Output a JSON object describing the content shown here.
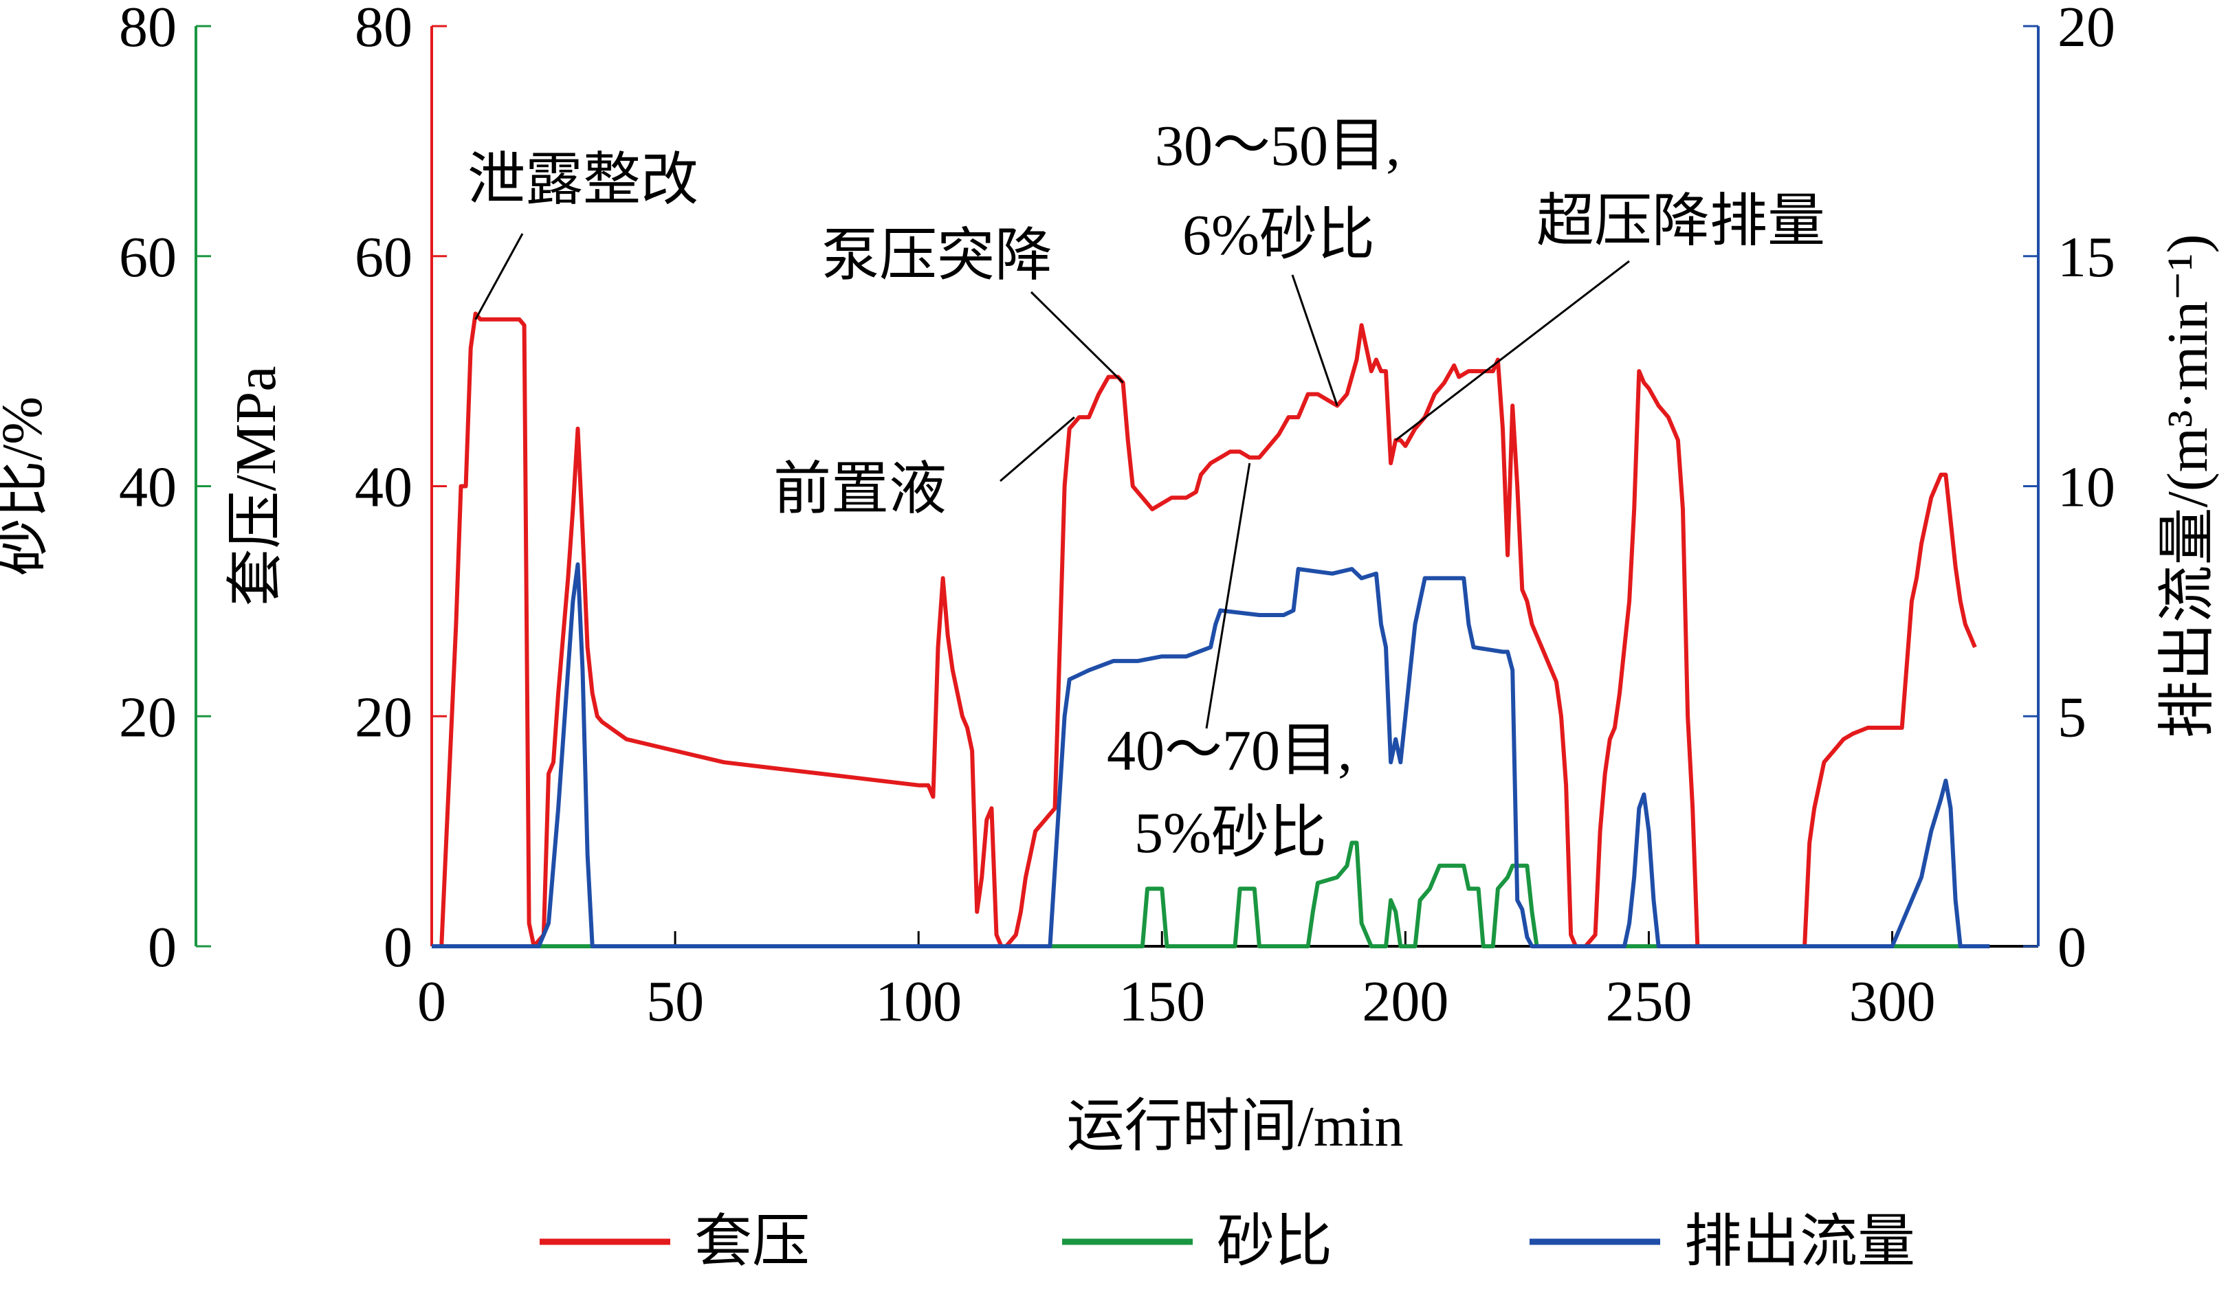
{
  "chart_data": {
    "type": "line",
    "xlabel": "运行时间/min",
    "xlim": [
      0,
      330
    ],
    "xticks": [
      0,
      50,
      100,
      150,
      200,
      250,
      300
    ],
    "axes": {
      "sand": {
        "label": "砂比/%",
        "lim": [
          0,
          80
        ],
        "ticks": [
          0,
          20,
          40,
          60,
          80
        ],
        "color": "#1a9641"
      },
      "pressure": {
        "label": "套压/MPa",
        "lim": [
          0,
          80
        ],
        "ticks": [
          0,
          20,
          40,
          60,
          80
        ],
        "color": "#e31a1c"
      },
      "flow": {
        "label": "排出流量/(m³·min⁻¹)",
        "lim": [
          0,
          20
        ],
        "ticks": [
          0,
          5,
          10,
          15,
          20
        ],
        "color": "#1f4ea8"
      }
    },
    "series": [
      {
        "name": "套压",
        "axis": "pressure",
        "color": "#e31a1c",
        "points": [
          [
            2,
            0
          ],
          [
            5,
            28
          ],
          [
            6,
            40
          ],
          [
            7,
            40
          ],
          [
            8,
            52
          ],
          [
            9,
            55
          ],
          [
            10,
            54.5
          ],
          [
            18,
            54.5
          ],
          [
            19,
            54
          ],
          [
            20,
            2
          ],
          [
            21,
            0
          ],
          [
            23,
            1
          ],
          [
            24,
            15
          ],
          [
            25,
            16
          ],
          [
            26,
            22
          ],
          [
            27,
            27
          ],
          [
            28,
            32
          ],
          [
            29,
            38
          ],
          [
            30,
            45
          ],
          [
            31,
            36
          ],
          [
            32,
            26
          ],
          [
            33,
            22
          ],
          [
            34,
            20
          ],
          [
            35,
            19.5
          ],
          [
            40,
            18
          ],
          [
            50,
            17
          ],
          [
            60,
            16
          ],
          [
            70,
            15.5
          ],
          [
            80,
            15
          ],
          [
            90,
            14.5
          ],
          [
            100,
            14
          ],
          [
            102,
            14
          ],
          [
            103,
            13
          ],
          [
            104,
            26
          ],
          [
            105,
            32
          ],
          [
            106,
            27
          ],
          [
            107,
            24
          ],
          [
            108,
            22
          ],
          [
            109,
            20
          ],
          [
            110,
            19
          ],
          [
            111,
            17
          ],
          [
            112,
            3
          ],
          [
            113,
            6
          ],
          [
            114,
            11
          ],
          [
            115,
            12
          ],
          [
            116,
            1
          ],
          [
            117,
            0
          ],
          [
            118,
            0
          ],
          [
            120,
            1
          ],
          [
            121,
            3
          ],
          [
            122,
            6
          ],
          [
            123,
            8
          ],
          [
            124,
            10
          ],
          [
            126,
            11
          ],
          [
            128,
            12
          ],
          [
            129,
            26
          ],
          [
            130,
            40
          ],
          [
            131,
            45
          ],
          [
            133,
            46
          ],
          [
            135,
            46
          ],
          [
            137,
            48
          ],
          [
            139,
            49.5
          ],
          [
            141,
            49.5
          ],
          [
            142,
            49
          ],
          [
            143,
            44
          ],
          [
            144,
            40
          ],
          [
            146,
            39
          ],
          [
            148,
            38
          ],
          [
            150,
            38.5
          ],
          [
            152,
            39
          ],
          [
            155,
            39
          ],
          [
            157,
            39.5
          ],
          [
            158,
            41
          ],
          [
            160,
            42
          ],
          [
            162,
            42.5
          ],
          [
            164,
            43
          ],
          [
            166,
            43
          ],
          [
            168,
            42.5
          ],
          [
            170,
            42.5
          ],
          [
            172,
            43.5
          ],
          [
            174,
            44.5
          ],
          [
            176,
            46
          ],
          [
            178,
            46
          ],
          [
            180,
            48
          ],
          [
            182,
            48
          ],
          [
            184,
            47.5
          ],
          [
            186,
            47
          ],
          [
            188,
            48
          ],
          [
            190,
            51
          ],
          [
            191,
            54
          ],
          [
            192,
            52
          ],
          [
            193,
            50
          ],
          [
            194,
            51
          ],
          [
            195,
            50
          ],
          [
            196,
            50
          ],
          [
            197,
            42
          ],
          [
            198,
            44
          ],
          [
            199,
            44
          ],
          [
            200,
            43.5
          ],
          [
            202,
            45
          ],
          [
            204,
            46
          ],
          [
            206,
            48
          ],
          [
            208,
            49
          ],
          [
            210,
            50.5
          ],
          [
            211,
            49.5
          ],
          [
            213,
            50
          ],
          [
            215,
            50
          ],
          [
            218,
            50
          ],
          [
            219,
            51
          ],
          [
            220,
            45
          ],
          [
            221,
            34
          ],
          [
            222,
            47
          ],
          [
            223,
            40
          ],
          [
            224,
            31
          ],
          [
            225,
            30
          ],
          [
            226,
            28
          ],
          [
            228,
            26
          ],
          [
            230,
            24
          ],
          [
            231,
            23
          ],
          [
            232,
            20
          ],
          [
            233,
            14
          ],
          [
            234,
            1
          ],
          [
            235,
            0
          ],
          [
            237,
            0
          ],
          [
            239,
            1
          ],
          [
            240,
            10
          ],
          [
            241,
            15
          ],
          [
            242,
            18
          ],
          [
            243,
            19
          ],
          [
            244,
            22
          ],
          [
            245,
            26
          ],
          [
            246,
            30
          ],
          [
            247,
            38
          ],
          [
            248,
            50
          ],
          [
            249,
            49
          ],
          [
            250,
            48.5
          ],
          [
            252,
            47
          ],
          [
            254,
            46
          ],
          [
            256,
            44
          ],
          [
            257,
            38
          ],
          [
            258,
            20
          ],
          [
            259,
            12
          ],
          [
            260,
            0
          ],
          [
            262,
            0
          ],
          [
            282,
            0
          ],
          [
            283,
            9
          ],
          [
            284,
            12
          ],
          [
            286,
            16
          ],
          [
            288,
            17
          ],
          [
            290,
            18
          ],
          [
            292,
            18.5
          ],
          [
            295,
            19
          ],
          [
            298,
            19
          ],
          [
            300,
            19
          ],
          [
            302,
            19
          ],
          [
            304,
            30
          ],
          [
            305,
            32
          ],
          [
            306,
            35
          ],
          [
            307,
            37
          ],
          [
            308,
            39
          ],
          [
            309,
            40
          ],
          [
            310,
            41
          ],
          [
            311,
            41
          ],
          [
            312,
            37
          ],
          [
            313,
            33
          ],
          [
            314,
            30
          ],
          [
            315,
            28
          ],
          [
            316,
            27
          ],
          [
            317,
            26
          ]
        ]
      },
      {
        "name": "砂比",
        "axis": "sand",
        "color": "#1a9641",
        "points": [
          [
            0,
            0
          ],
          [
            146,
            0
          ],
          [
            147,
            5
          ],
          [
            150,
            5
          ],
          [
            151,
            0
          ],
          [
            165,
            0
          ],
          [
            166,
            5
          ],
          [
            169,
            5
          ],
          [
            170,
            0
          ],
          [
            180,
            0
          ],
          [
            181,
            3
          ],
          [
            182,
            5.5
          ],
          [
            186,
            6
          ],
          [
            188,
            7
          ],
          [
            189,
            9
          ],
          [
            190,
            9
          ],
          [
            191,
            2
          ],
          [
            193,
            0
          ],
          [
            196,
            0
          ],
          [
            197,
            4
          ],
          [
            198,
            3
          ],
          [
            199,
            0
          ],
          [
            202,
            0
          ],
          [
            203,
            4
          ],
          [
            205,
            5
          ],
          [
            207,
            7
          ],
          [
            212,
            7
          ],
          [
            213,
            5
          ],
          [
            215,
            5
          ],
          [
            216,
            0
          ],
          [
            218,
            0
          ],
          [
            219,
            5
          ],
          [
            221,
            6
          ],
          [
            222,
            7
          ],
          [
            225,
            7
          ],
          [
            226,
            3
          ],
          [
            227,
            0
          ],
          [
            320,
            0
          ]
        ]
      },
      {
        "name": "排出流量",
        "axis": "flow",
        "color": "#1f4ea8",
        "points": [
          [
            0,
            0
          ],
          [
            22,
            0
          ],
          [
            24,
            0.5
          ],
          [
            26,
            3
          ],
          [
            27,
            4.5
          ],
          [
            28,
            6
          ],
          [
            29,
            7.5
          ],
          [
            30,
            8.3
          ],
          [
            31,
            6
          ],
          [
            32,
            2
          ],
          [
            33,
            0
          ],
          [
            127,
            0
          ],
          [
            130,
            5
          ],
          [
            131,
            5.8
          ],
          [
            135,
            6
          ],
          [
            140,
            6.2
          ],
          [
            145,
            6.2
          ],
          [
            150,
            6.3
          ],
          [
            155,
            6.3
          ],
          [
            160,
            6.5
          ],
          [
            161,
            7
          ],
          [
            162,
            7.3
          ],
          [
            170,
            7.2
          ],
          [
            175,
            7.2
          ],
          [
            177,
            7.3
          ],
          [
            178,
            8.2
          ],
          [
            185,
            8.1
          ],
          [
            189,
            8.2
          ],
          [
            191,
            8
          ],
          [
            194,
            8.1
          ],
          [
            195,
            7
          ],
          [
            196,
            6.5
          ],
          [
            197,
            4
          ],
          [
            198,
            4.5
          ],
          [
            199,
            4
          ],
          [
            200,
            5
          ],
          [
            201,
            6
          ],
          [
            202,
            7
          ],
          [
            203,
            7.5
          ],
          [
            204,
            8
          ],
          [
            210,
            8
          ],
          [
            212,
            8
          ],
          [
            213,
            7
          ],
          [
            214,
            6.5
          ],
          [
            220,
            6.4
          ],
          [
            221,
            6.4
          ],
          [
            222,
            6
          ],
          [
            223,
            1
          ],
          [
            224,
            0.8
          ],
          [
            225,
            0.2
          ],
          [
            226,
            0
          ],
          [
            245,
            0
          ],
          [
            246,
            0.5
          ],
          [
            247,
            1.5
          ],
          [
            248,
            3
          ],
          [
            249,
            3.3
          ],
          [
            250,
            2.5
          ],
          [
            251,
            1
          ],
          [
            252,
            0
          ],
          [
            300,
            0
          ],
          [
            302,
            0.5
          ],
          [
            304,
            1
          ],
          [
            306,
            1.5
          ],
          [
            308,
            2.5
          ],
          [
            310,
            3.2
          ],
          [
            311,
            3.6
          ],
          [
            312,
            3
          ],
          [
            313,
            1
          ],
          [
            314,
            0
          ],
          [
            320,
            0
          ]
        ]
      }
    ],
    "annotations": [
      {
        "text": "泄露整改",
        "point": [
          9,
          54.5
        ],
        "axis": "pressure"
      },
      {
        "text": "泵压突降",
        "point": [
          142,
          49
        ],
        "axis": "pressure"
      },
      {
        "text": "前置液",
        "point": [
          132,
          46
        ],
        "axis": "pressure"
      },
      {
        "text": "30～50目,",
        "text2": "6%砂比",
        "point": [
          186,
          47
        ],
        "axis": "pressure"
      },
      {
        "text": "超压降排量",
        "point": [
          198,
          44
        ],
        "axis": "pressure"
      },
      {
        "text": "40～70目,",
        "text2": "5%砂比",
        "point": [
          168,
          42
        ],
        "axis": "pressure"
      }
    ],
    "legend": {
      "placement": "bottom",
      "items": [
        {
          "label": "套压",
          "color": "#e31a1c"
        },
        {
          "label": "砂比",
          "color": "#1a9641"
        },
        {
          "label": "排出流量",
          "color": "#1f4ea8"
        }
      ]
    },
    "grid": false
  }
}
